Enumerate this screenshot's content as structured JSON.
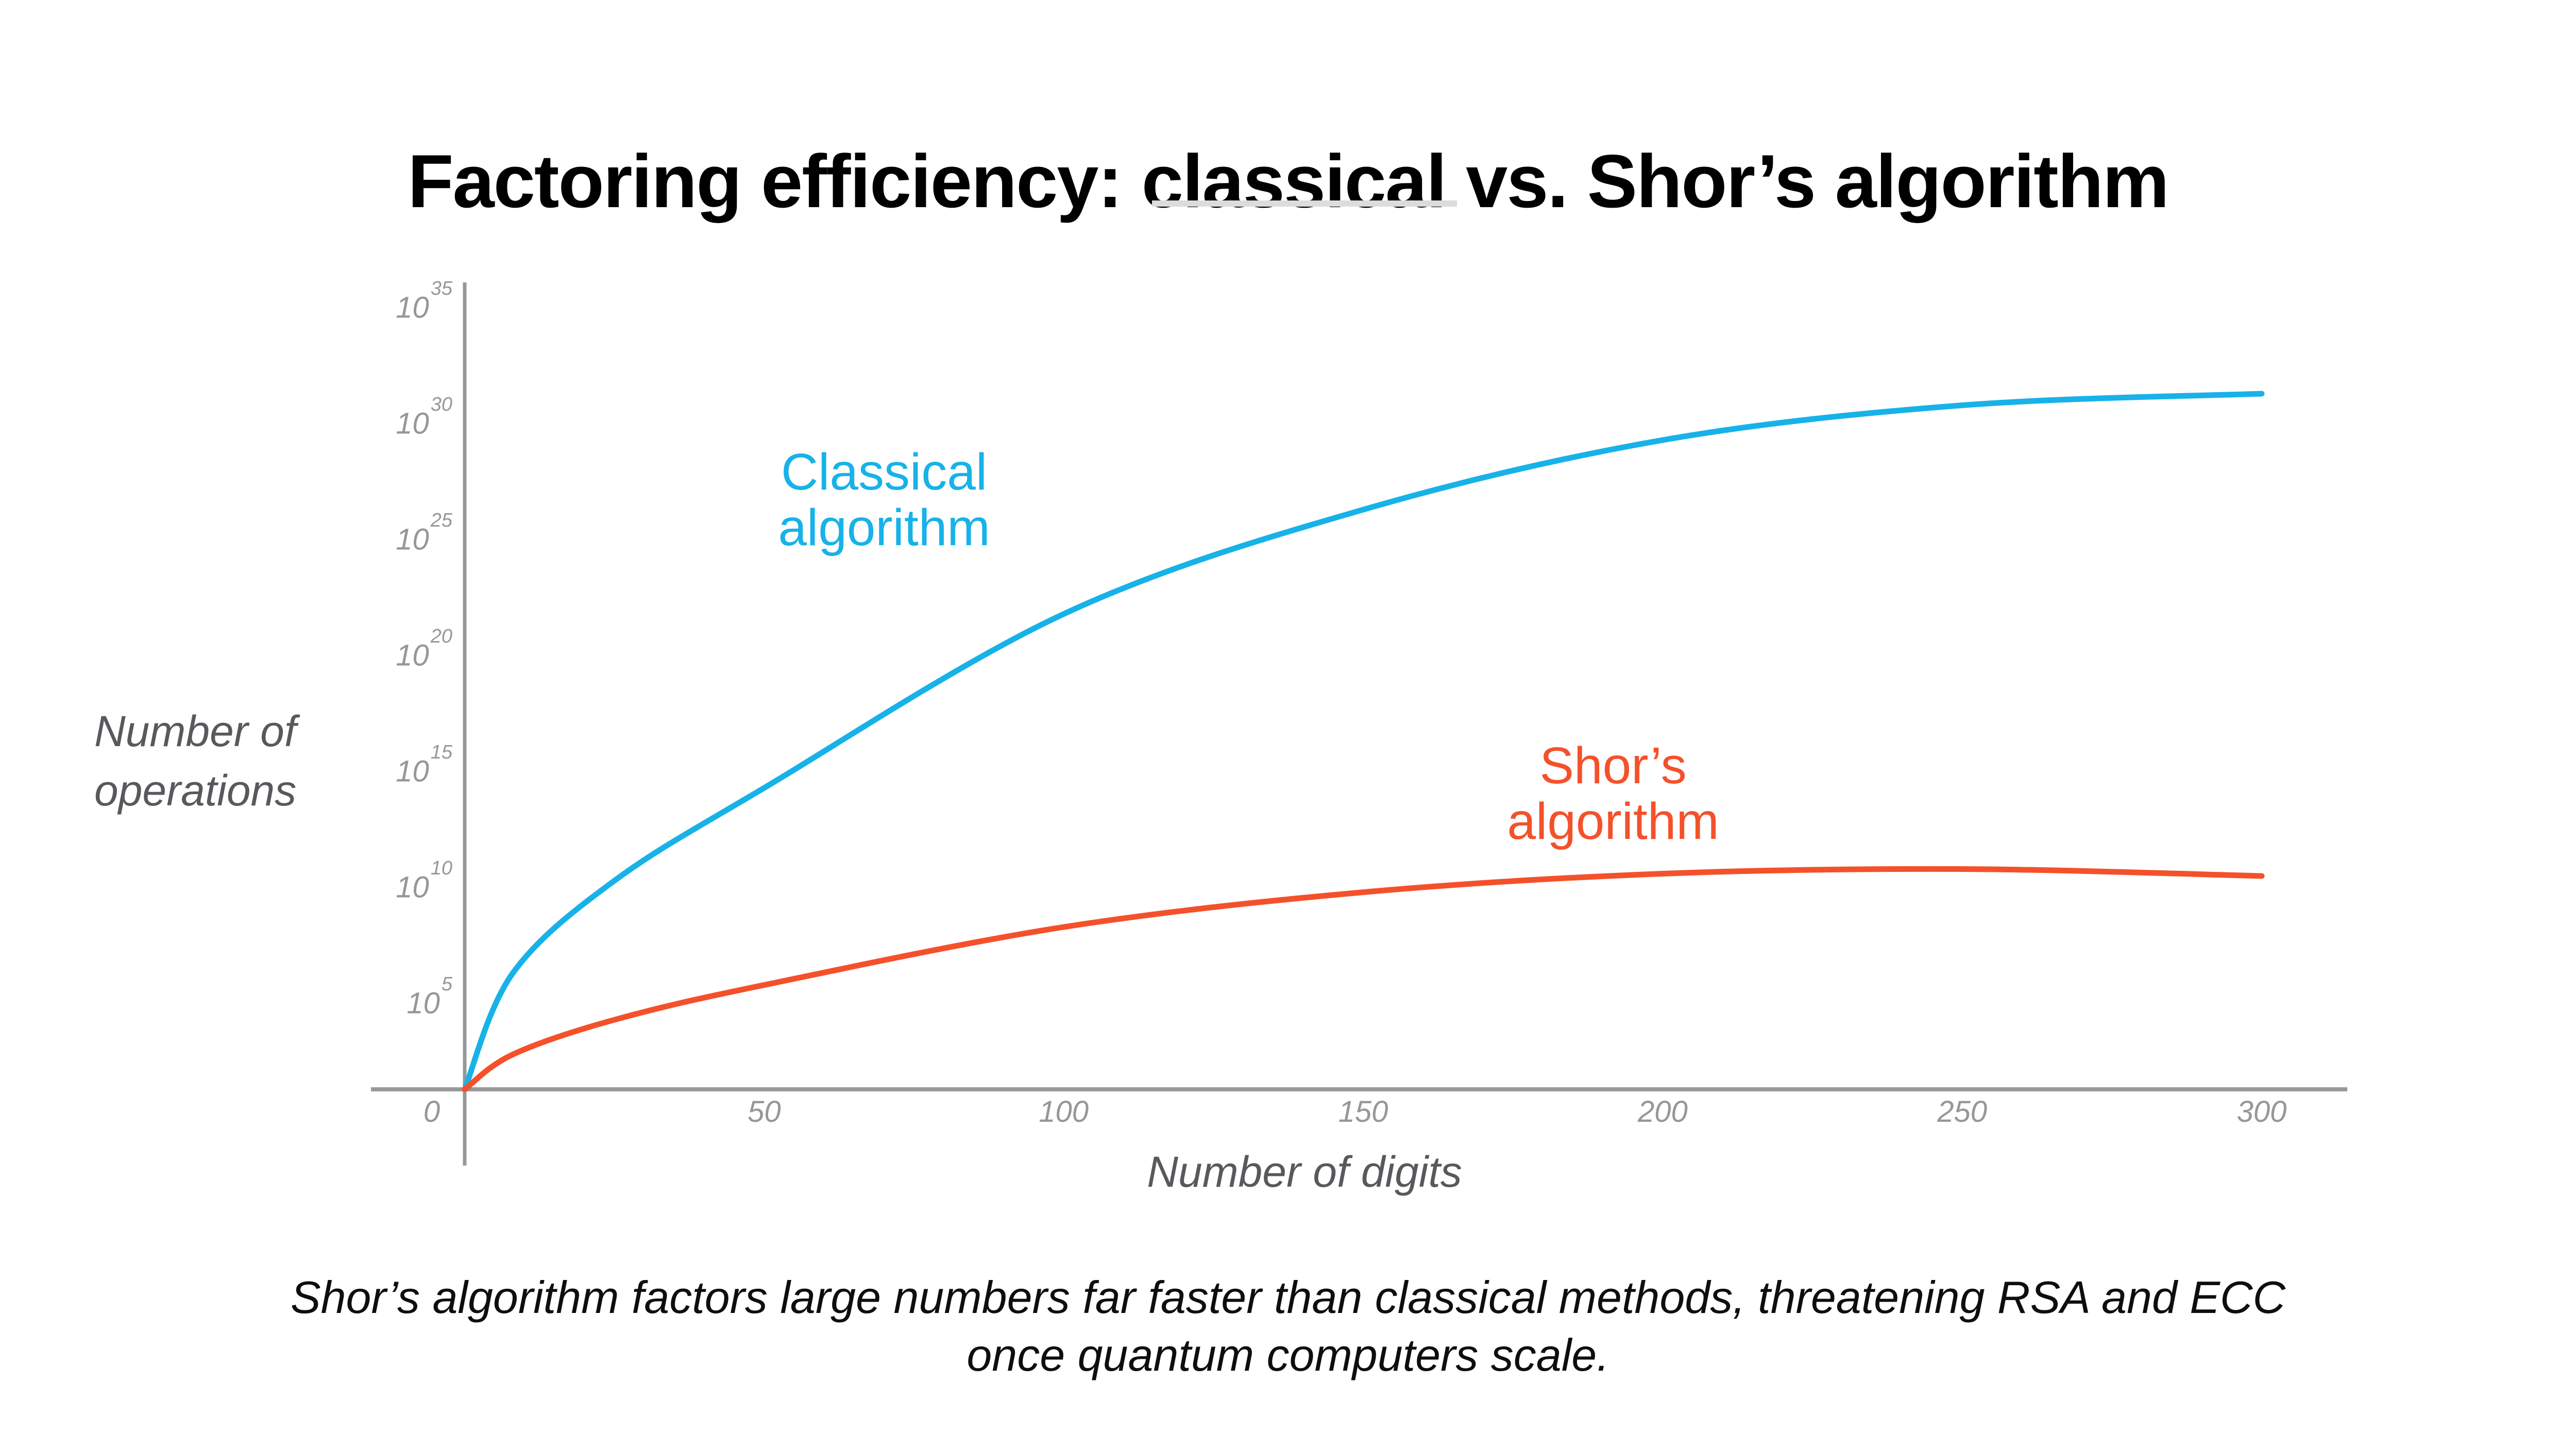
{
  "page": {
    "background": "#ffffff"
  },
  "header": {
    "title": "Factoring efficiency: classical vs. Shor’s algorithm"
  },
  "caption": {
    "lines": [
      "Shor’s algorithm factors large numbers far faster than classical methods, threatening RSA and ECC",
      "once quantum computers scale."
    ]
  },
  "chart_data": {
    "type": "line",
    "title": "Factoring efficiency: classical vs. Shor’s algorithm",
    "xlabel": "Number of digits",
    "ylabel": "Number of operations",
    "ylabel_lines": [
      "Number of",
      "operations"
    ],
    "x_ticks": [
      0,
      50,
      100,
      150,
      200,
      250,
      300
    ],
    "y_tick_exponents": [
      5,
      10,
      15,
      20,
      25,
      30,
      35
    ],
    "origin_label": "0",
    "y_scale": "log10",
    "xlim": [
      0,
      300
    ],
    "ylim_log10": [
      0,
      35
    ],
    "grid": false,
    "legend_position": "labels-on-chart",
    "series": [
      {
        "name": "Classical algorithm",
        "label_lines": [
          "Classical",
          "algorithm"
        ],
        "color": "#17B2E8",
        "points_digits_log10_ops": [
          [
            0,
            0
          ],
          [
            8,
            6
          ],
          [
            25,
            10
          ],
          [
            50,
            14
          ],
          [
            100,
            21.5
          ],
          [
            150,
            26
          ],
          [
            200,
            29
          ],
          [
            250,
            30.5
          ],
          [
            300,
            31
          ]
        ]
      },
      {
        "name": "Shor’s algorithm",
        "label_lines": [
          "Shor’s",
          "algorithm"
        ],
        "color": "#F4512B",
        "points_digits_log10_ops": [
          [
            0,
            0
          ],
          [
            8,
            2.5
          ],
          [
            25,
            4
          ],
          [
            50,
            5.5
          ],
          [
            100,
            8
          ],
          [
            150,
            9.5
          ],
          [
            200,
            10.3
          ],
          [
            250,
            10.5
          ],
          [
            300,
            10.2
          ]
        ]
      }
    ]
  },
  "colors": {
    "axis_line": "#96989B",
    "tick_text": "#95979A",
    "axis_title_text": "#58595C",
    "title_text": "#000000",
    "caption_text": "#0E0E0E",
    "divider": "#DCDCDC",
    "classical": "#17B2E8",
    "shor": "#F4512B"
  }
}
